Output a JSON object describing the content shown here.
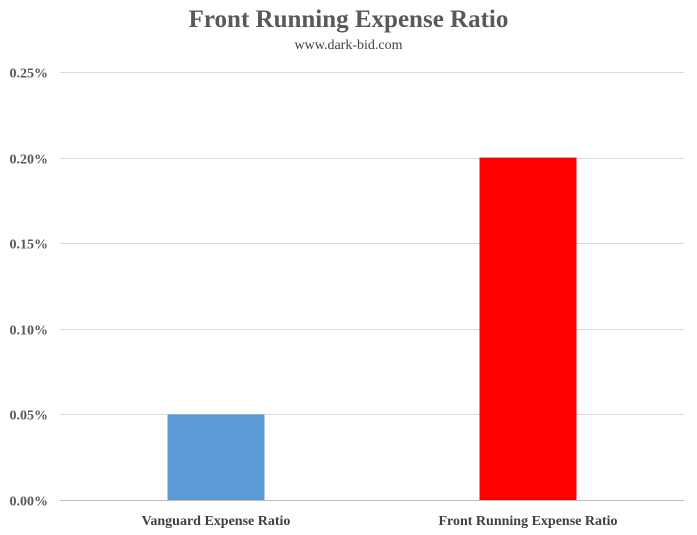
{
  "chart_data": {
    "type": "bar",
    "title": "Front Running Expense Ratio",
    "subtitle": "www.dark-bid.com",
    "categories": [
      "Vanguard Expense Ratio",
      "Front Running Expense Ratio"
    ],
    "values": [
      0.0005,
      0.002
    ],
    "bar_colors": [
      "#5b9bd5",
      "#ff0000"
    ],
    "ylim": [
      0,
      0.0025
    ],
    "yticks": [
      0,
      0.0005,
      0.001,
      0.0015,
      0.002,
      0.0025
    ],
    "ytick_labels": [
      "0.00%",
      "0.05%",
      "0.10%",
      "0.15%",
      "0.20%",
      "0.25%"
    ],
    "xlabel": "",
    "ylabel": "",
    "grid": true,
    "legend": "none"
  }
}
